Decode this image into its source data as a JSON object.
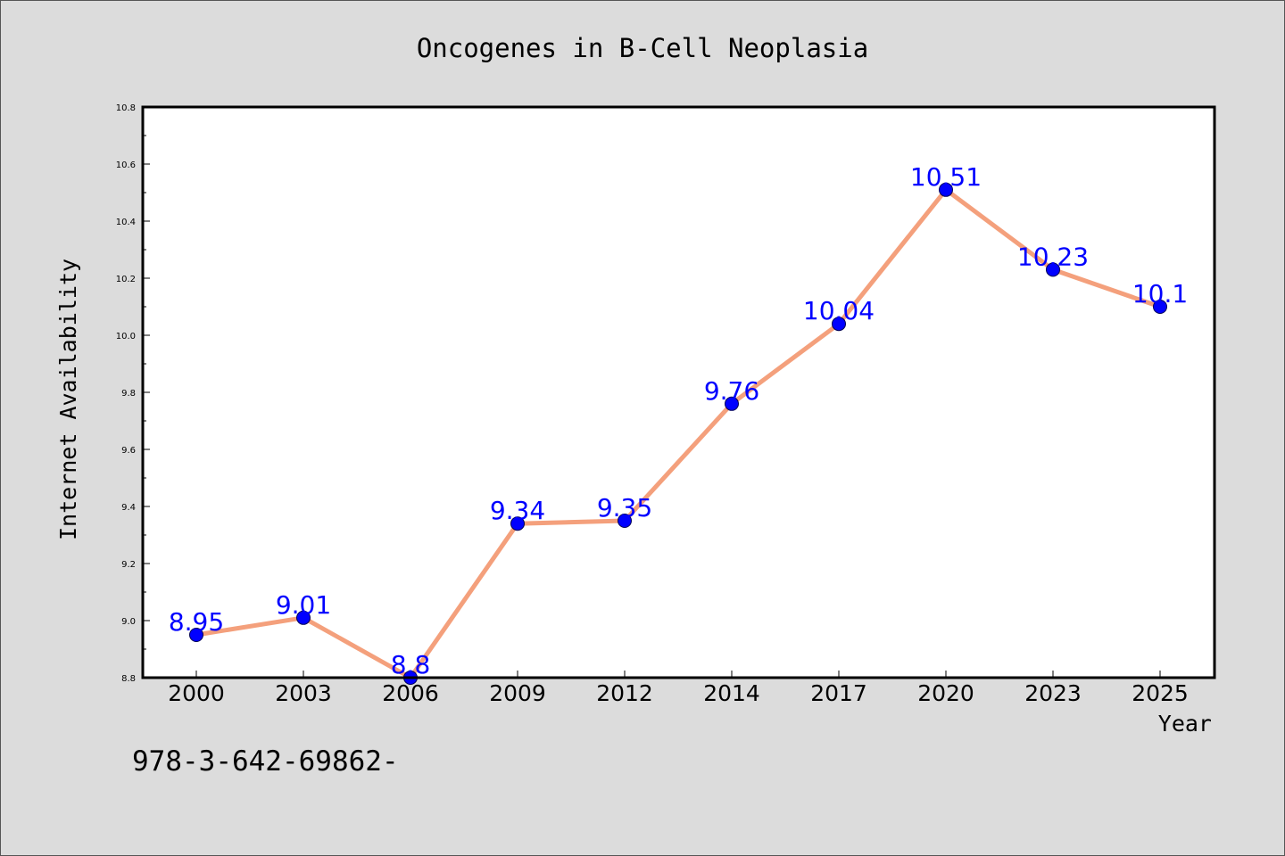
{
  "chart_data": {
    "type": "line",
    "title": "Oncogenes in B-Cell Neoplasia",
    "xlabel": "Year",
    "ylabel": "Internet Availability",
    "categories": [
      "2000",
      "2003",
      "2006",
      "2009",
      "2012",
      "2014",
      "2017",
      "2020",
      "2023",
      "2025"
    ],
    "values": [
      8.95,
      9.01,
      8.8,
      9.34,
      9.35,
      9.76,
      10.04,
      10.51,
      10.23,
      10.1
    ],
    "data_labels": [
      "8.95",
      "9.01",
      "8.8",
      "9.34",
      "9.35",
      "9.76",
      "10.04",
      "10.51",
      "10.23",
      "10.1"
    ],
    "ylim": [
      8.8,
      10.8
    ],
    "yticks": [
      "8.8",
      "9.0",
      "9.2",
      "9.4",
      "9.6",
      "9.8",
      "10.0",
      "10.2",
      "10.4",
      "10.6",
      "10.8"
    ],
    "grid": false,
    "legend": "none",
    "colors": {
      "line": "#f4a07c",
      "marker": "#0000ff",
      "marker_edge": "#000055",
      "data_label": "#0000ff",
      "plot_background": "#ffffff",
      "figure_background": "#dcdcdc"
    }
  },
  "footnote": "978-3-642-69862-"
}
